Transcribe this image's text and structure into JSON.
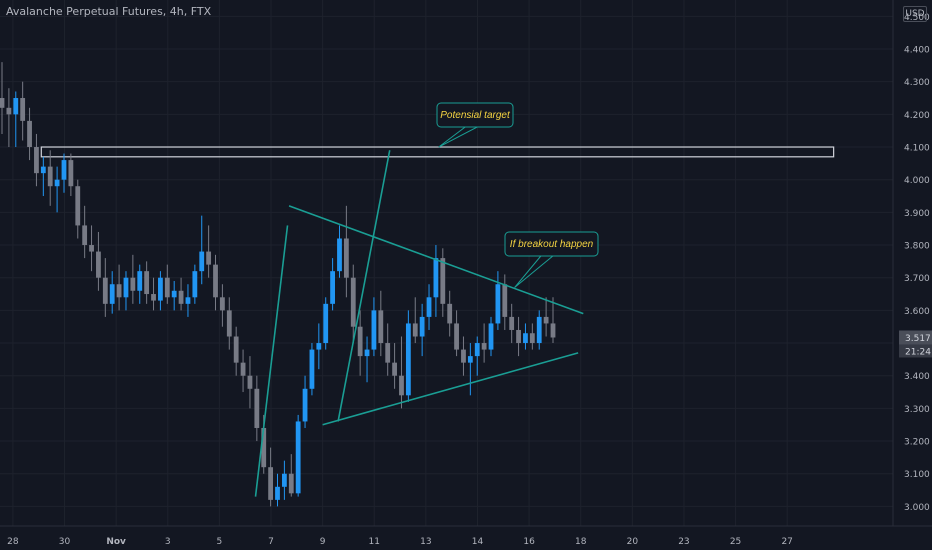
{
  "header": {
    "title": "Avalanche Perpetual Futures, 4h, FTX",
    "currency": "USD"
  },
  "price_tag": {
    "price": "3.517",
    "countdown": "21:24"
  },
  "colors": {
    "background": "#131722",
    "up": "#2196f3",
    "down": "#787b86",
    "line": "#1a9e94",
    "callout_text": "#f5d442",
    "callout_border": "#1a9e94"
  },
  "annotations": [
    {
      "text": "Potensial target"
    },
    {
      "text": "If breakout happen"
    }
  ],
  "chart_data": {
    "type": "candlestick",
    "title": "Avalanche Perpetual Futures, 4h, FTX",
    "ylim": [
      2.94,
      4.55
    ],
    "xlim": [
      -0.25,
      17.05
    ],
    "y_ticks": [
      "3.000",
      "3.100",
      "3.200",
      "3.300",
      "3.400",
      "3.500",
      "3.600",
      "3.700",
      "3.800",
      "3.900",
      "4.000",
      "4.100",
      "4.200",
      "4.300",
      "4.400",
      "4.500"
    ],
    "x_ticks": [
      {
        "label": "28",
        "x": 0
      },
      {
        "label": "30",
        "x": 1
      },
      {
        "label": "Nov",
        "x": 2
      },
      {
        "label": "3",
        "x": 3
      },
      {
        "label": "5",
        "x": 4
      },
      {
        "label": "7",
        "x": 5
      },
      {
        "label": "9",
        "x": 6
      },
      {
        "label": "11",
        "x": 7
      },
      {
        "label": "13",
        "x": 8
      },
      {
        "label": "14",
        "x": 9
      },
      {
        "label": "16",
        "x": 10
      },
      {
        "label": "18",
        "x": 11
      },
      {
        "label": "20",
        "x": 12
      },
      {
        "label": "23",
        "x": 13
      },
      {
        "label": "25",
        "x": 14
      },
      {
        "label": "27",
        "x": 15
      }
    ],
    "last_price": 3.517,
    "resistance_zone": {
      "from": 4.07,
      "to": 4.1,
      "x_start": 0.55,
      "x_end": 15.9
    },
    "trendlines": [
      {
        "name": "upper-triangle",
        "points": [
          [
            5.35,
            3.92
          ],
          [
            11.05,
            3.59
          ]
        ]
      },
      {
        "name": "lower-triangle",
        "points": [
          [
            6.0,
            3.25
          ],
          [
            10.95,
            3.47
          ]
        ]
      },
      {
        "name": "rally-line-1",
        "points": [
          [
            4.7,
            3.03
          ],
          [
            5.32,
            3.86
          ]
        ]
      },
      {
        "name": "rally-line-2",
        "points": [
          [
            6.3,
            3.26
          ],
          [
            7.3,
            4.09
          ]
        ]
      }
    ],
    "callouts": [
      {
        "text": "Potensial target",
        "anchor": [
          8.25,
          4.1
        ]
      },
      {
        "text": "If breakout happen",
        "anchor": [
          9.72,
          3.67
        ]
      }
    ],
    "candles": [
      {
        "o": 4.25,
        "h": 4.36,
        "l": 4.14,
        "c": 4.22
      },
      {
        "o": 4.22,
        "h": 4.28,
        "l": 4.1,
        "c": 4.2
      },
      {
        "o": 4.2,
        "h": 4.27,
        "l": 4.1,
        "c": 4.25
      },
      {
        "o": 4.25,
        "h": 4.3,
        "l": 4.12,
        "c": 4.18
      },
      {
        "o": 4.18,
        "h": 4.22,
        "l": 4.06,
        "c": 4.1
      },
      {
        "o": 4.1,
        "h": 4.14,
        "l": 3.98,
        "c": 4.02
      },
      {
        "o": 4.02,
        "h": 4.07,
        "l": 3.95,
        "c": 4.04
      },
      {
        "o": 4.04,
        "h": 4.09,
        "l": 3.92,
        "c": 3.98
      },
      {
        "o": 3.98,
        "h": 4.04,
        "l": 3.9,
        "c": 4.0
      },
      {
        "o": 4.0,
        "h": 4.08,
        "l": 3.96,
        "c": 4.06
      },
      {
        "o": 4.06,
        "h": 4.08,
        "l": 3.95,
        "c": 3.98
      },
      {
        "o": 3.98,
        "h": 4.0,
        "l": 3.82,
        "c": 3.86
      },
      {
        "o": 3.86,
        "h": 3.92,
        "l": 3.76,
        "c": 3.8
      },
      {
        "o": 3.8,
        "h": 3.86,
        "l": 3.72,
        "c": 3.78
      },
      {
        "o": 3.78,
        "h": 3.84,
        "l": 3.66,
        "c": 3.7
      },
      {
        "o": 3.7,
        "h": 3.76,
        "l": 3.58,
        "c": 3.62
      },
      {
        "o": 3.62,
        "h": 3.72,
        "l": 3.59,
        "c": 3.68
      },
      {
        "o": 3.68,
        "h": 3.74,
        "l": 3.6,
        "c": 3.64
      },
      {
        "o": 3.64,
        "h": 3.72,
        "l": 3.6,
        "c": 3.7
      },
      {
        "o": 3.7,
        "h": 3.77,
        "l": 3.62,
        "c": 3.66
      },
      {
        "o": 3.66,
        "h": 3.74,
        "l": 3.62,
        "c": 3.72
      },
      {
        "o": 3.72,
        "h": 3.75,
        "l": 3.62,
        "c": 3.65
      },
      {
        "o": 3.65,
        "h": 3.7,
        "l": 3.6,
        "c": 3.63
      },
      {
        "o": 3.63,
        "h": 3.72,
        "l": 3.6,
        "c": 3.7
      },
      {
        "o": 3.7,
        "h": 3.74,
        "l": 3.62,
        "c": 3.64
      },
      {
        "o": 3.64,
        "h": 3.69,
        "l": 3.6,
        "c": 3.66
      },
      {
        "o": 3.66,
        "h": 3.7,
        "l": 3.6,
        "c": 3.62
      },
      {
        "o": 3.62,
        "h": 3.68,
        "l": 3.58,
        "c": 3.64
      },
      {
        "o": 3.64,
        "h": 3.74,
        "l": 3.62,
        "c": 3.72
      },
      {
        "o": 3.72,
        "h": 3.89,
        "l": 3.68,
        "c": 3.78
      },
      {
        "o": 3.78,
        "h": 3.86,
        "l": 3.7,
        "c": 3.74
      },
      {
        "o": 3.74,
        "h": 3.77,
        "l": 3.6,
        "c": 3.64
      },
      {
        "o": 3.64,
        "h": 3.68,
        "l": 3.55,
        "c": 3.6
      },
      {
        "o": 3.6,
        "h": 3.64,
        "l": 3.48,
        "c": 3.52
      },
      {
        "o": 3.52,
        "h": 3.55,
        "l": 3.4,
        "c": 3.44
      },
      {
        "o": 3.44,
        "h": 3.48,
        "l": 3.35,
        "c": 3.4
      },
      {
        "o": 3.4,
        "h": 3.46,
        "l": 3.3,
        "c": 3.36
      },
      {
        "o": 3.36,
        "h": 3.4,
        "l": 3.2,
        "c": 3.24
      },
      {
        "o": 3.24,
        "h": 3.28,
        "l": 3.1,
        "c": 3.12
      },
      {
        "o": 3.12,
        "h": 3.18,
        "l": 3.0,
        "c": 3.02
      },
      {
        "o": 3.02,
        "h": 3.1,
        "l": 3.0,
        "c": 3.06
      },
      {
        "o": 3.06,
        "h": 3.14,
        "l": 3.02,
        "c": 3.1
      },
      {
        "o": 3.1,
        "h": 3.16,
        "l": 3.03,
        "c": 3.04
      },
      {
        "o": 3.04,
        "h": 3.28,
        "l": 3.03,
        "c": 3.26
      },
      {
        "o": 3.26,
        "h": 3.4,
        "l": 3.24,
        "c": 3.36
      },
      {
        "o": 3.36,
        "h": 3.5,
        "l": 3.34,
        "c": 3.48
      },
      {
        "o": 3.48,
        "h": 3.56,
        "l": 3.42,
        "c": 3.5
      },
      {
        "o": 3.5,
        "h": 3.64,
        "l": 3.48,
        "c": 3.62
      },
      {
        "o": 3.62,
        "h": 3.76,
        "l": 3.6,
        "c": 3.72
      },
      {
        "o": 3.72,
        "h": 3.86,
        "l": 3.7,
        "c": 3.82
      },
      {
        "o": 3.82,
        "h": 3.92,
        "l": 3.64,
        "c": 3.7
      },
      {
        "o": 3.7,
        "h": 3.74,
        "l": 3.5,
        "c": 3.55
      },
      {
        "o": 3.55,
        "h": 3.6,
        "l": 3.4,
        "c": 3.46
      },
      {
        "o": 3.46,
        "h": 3.52,
        "l": 3.38,
        "c": 3.48
      },
      {
        "o": 3.48,
        "h": 3.64,
        "l": 3.46,
        "c": 3.6
      },
      {
        "o": 3.6,
        "h": 3.66,
        "l": 3.46,
        "c": 3.5
      },
      {
        "o": 3.5,
        "h": 3.56,
        "l": 3.4,
        "c": 3.44
      },
      {
        "o": 3.44,
        "h": 3.5,
        "l": 3.36,
        "c": 3.4
      },
      {
        "o": 3.4,
        "h": 3.52,
        "l": 3.3,
        "c": 3.34
      },
      {
        "o": 3.34,
        "h": 3.6,
        "l": 3.32,
        "c": 3.56
      },
      {
        "o": 3.56,
        "h": 3.64,
        "l": 3.5,
        "c": 3.52
      },
      {
        "o": 3.52,
        "h": 3.62,
        "l": 3.46,
        "c": 3.58
      },
      {
        "o": 3.58,
        "h": 3.68,
        "l": 3.54,
        "c": 3.64
      },
      {
        "o": 3.64,
        "h": 3.8,
        "l": 3.58,
        "c": 3.76
      },
      {
        "o": 3.76,
        "h": 3.79,
        "l": 3.58,
        "c": 3.62
      },
      {
        "o": 3.62,
        "h": 3.66,
        "l": 3.52,
        "c": 3.56
      },
      {
        "o": 3.56,
        "h": 3.6,
        "l": 3.46,
        "c": 3.48
      },
      {
        "o": 3.48,
        "h": 3.52,
        "l": 3.4,
        "c": 3.44
      },
      {
        "o": 3.44,
        "h": 3.5,
        "l": 3.34,
        "c": 3.46
      },
      {
        "o": 3.46,
        "h": 3.52,
        "l": 3.4,
        "c": 3.5
      },
      {
        "o": 3.5,
        "h": 3.56,
        "l": 3.44,
        "c": 3.48
      },
      {
        "o": 3.48,
        "h": 3.58,
        "l": 3.46,
        "c": 3.56
      },
      {
        "o": 3.56,
        "h": 3.72,
        "l": 3.54,
        "c": 3.68
      },
      {
        "o": 3.68,
        "h": 3.71,
        "l": 3.54,
        "c": 3.58
      },
      {
        "o": 3.58,
        "h": 3.62,
        "l": 3.5,
        "c": 3.54
      },
      {
        "o": 3.54,
        "h": 3.58,
        "l": 3.46,
        "c": 3.5
      },
      {
        "o": 3.5,
        "h": 3.56,
        "l": 3.48,
        "c": 3.53
      },
      {
        "o": 3.53,
        "h": 3.56,
        "l": 3.48,
        "c": 3.5
      },
      {
        "o": 3.5,
        "h": 3.6,
        "l": 3.48,
        "c": 3.58
      },
      {
        "o": 3.58,
        "h": 3.64,
        "l": 3.52,
        "c": 3.56
      },
      {
        "o": 3.56,
        "h": 3.64,
        "l": 3.5,
        "c": 3.517
      }
    ]
  }
}
